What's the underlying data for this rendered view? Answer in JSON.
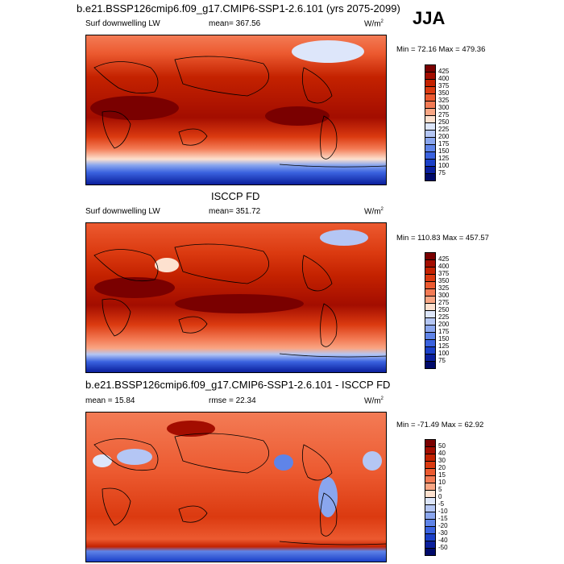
{
  "title": "b.e21.BSSP126cmip6.f09_g17.CMIP6-SSP1-2.6.101 (yrs 2075-2099)",
  "season": "JJA",
  "panels": [
    {
      "variable": "Surf downwelling LW",
      "mean": "mean= 367.56",
      "units": "W/m",
      "units_sup": "2",
      "minmax": "Min = 72.16 Max = 479.36",
      "colorbar_ticks": [
        "425",
        "400",
        "375",
        "350",
        "325",
        "300",
        "275",
        "250",
        "225",
        "200",
        "175",
        "150",
        "125",
        "100",
        "75"
      ]
    },
    {
      "header": "ISCCP FD",
      "variable": "Surf downwelling LW",
      "mean": "mean= 351.72",
      "units": "W/m",
      "units_sup": "2",
      "minmax": "Min = 110.83 Max = 457.57",
      "colorbar_ticks": [
        "425",
        "400",
        "375",
        "350",
        "325",
        "300",
        "275",
        "250",
        "225",
        "200",
        "175",
        "150",
        "125",
        "100",
        "75"
      ]
    },
    {
      "header": "b.e21.BSSP126cmip6.f09_g17.CMIP6-SSP1-2.6.101 - ISCCP FD",
      "mean": "mean = 15.84",
      "rmse": "rmse = 22.34",
      "units": "W/m",
      "units_sup": "2",
      "minmax": "Min = -71.49 Max = 62.92",
      "colorbar_ticks": [
        "50",
        "40",
        "30",
        "20",
        "15",
        "10",
        "5",
        "0",
        "-5",
        "-10",
        "-15",
        "-20",
        "-30",
        "-40",
        "-50"
      ]
    }
  ],
  "colorbar_colors": [
    "#7a0000",
    "#a30d00",
    "#c42200",
    "#db3a10",
    "#ec5a30",
    "#f37b55",
    "#f9a684",
    "#fde1cf",
    "#dde6fa",
    "#b4c6f4",
    "#8aa6ee",
    "#5f84e8",
    "#3a62df",
    "#1b40c8",
    "#0a1f9c",
    "#000a6a"
  ]
}
